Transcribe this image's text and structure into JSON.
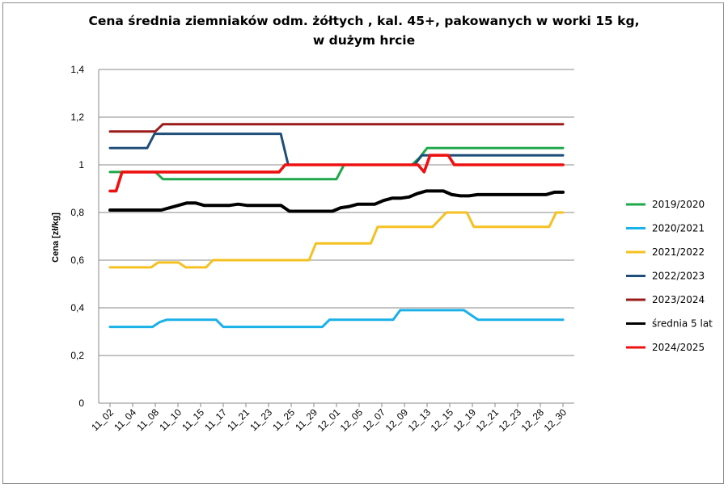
{
  "colors": {
    "2019/2020": "#1fa84a",
    "2020/2021": "#1ab0e8",
    "2021/2022": "#f5c021",
    "2022/2023": "#1e4e79",
    "2023/2024": "#9b1b1b",
    "średnia 5 lat": "#000000",
    "2024/2025": "#ee1111"
  },
  "chart_data": {
    "type": "line",
    "title": "Cena średnia ziemniaków odm. żółtych , kal. 45+, pakowanych w worki 15 kg, w dużym hrcie",
    "title_lines": [
      "Cena średnia ziemniaków odm. żółtych , kal. 45+, pakowanych w worki 15 kg,",
      "w dużym hrcie"
    ],
    "ylabel": "Cena [zł/kg]",
    "xlabel": "",
    "ylim": [
      0,
      1.4
    ],
    "yticks": [
      "0",
      "0,2",
      "0,4",
      "0,6",
      "0,8",
      "1",
      "1,2",
      "1,4"
    ],
    "x_tick_labels": [
      "11_02",
      "11_04",
      "11_08",
      "11_10",
      "11_15",
      "11_17",
      "11_21",
      "11_23",
      "11_25",
      "11_29",
      "12_01",
      "12_05",
      "12_07",
      "12_09",
      "12_13",
      "12_15",
      "12_19",
      "12_21",
      "12_23",
      "12_28",
      "12_30"
    ],
    "grid": true,
    "legend_position": "right",
    "series": [
      {
        "name": "2019/2020",
        "values": [
          0.97,
          0.97,
          0.97,
          0.97,
          0.97,
          0.97,
          0.97,
          0.94,
          0.94,
          0.94,
          0.94,
          0.94,
          0.94,
          0.94,
          0.94,
          0.94,
          0.94,
          0.94,
          0.94,
          0.94,
          0.94,
          0.94,
          0.94,
          0.94,
          0.94,
          0.94,
          0.94,
          0.94,
          0.94,
          0.94,
          0.94,
          1.0,
          1.0,
          1.0,
          1.0,
          1.0,
          1.0,
          1.0,
          1.0,
          1.0,
          1.0,
          1.03,
          1.07,
          1.07,
          1.07,
          1.07,
          1.07,
          1.07,
          1.07,
          1.07,
          1.07,
          1.07,
          1.07,
          1.07,
          1.07,
          1.07,
          1.07,
          1.07,
          1.07,
          1.07,
          1.07
        ]
      },
      {
        "name": "2020/2021",
        "values": [
          0.32,
          0.32,
          0.32,
          0.32,
          0.32,
          0.32,
          0.32,
          0.34,
          0.35,
          0.35,
          0.35,
          0.35,
          0.35,
          0.35,
          0.35,
          0.35,
          0.32,
          0.32,
          0.32,
          0.32,
          0.32,
          0.32,
          0.32,
          0.32,
          0.32,
          0.32,
          0.32,
          0.32,
          0.32,
          0.32,
          0.32,
          0.35,
          0.35,
          0.35,
          0.35,
          0.35,
          0.35,
          0.35,
          0.35,
          0.35,
          0.35,
          0.39,
          0.39,
          0.39,
          0.39,
          0.39,
          0.39,
          0.39,
          0.39,
          0.39,
          0.39,
          0.37,
          0.35,
          0.35,
          0.35,
          0.35,
          0.35,
          0.35,
          0.35,
          0.35,
          0.35,
          0.35,
          0.35,
          0.35,
          0.35
        ]
      },
      {
        "name": "2021/2022",
        "values": [
          0.57,
          0.57,
          0.57,
          0.57,
          0.57,
          0.57,
          0.57,
          0.59,
          0.59,
          0.59,
          0.59,
          0.57,
          0.57,
          0.57,
          0.57,
          0.6,
          0.6,
          0.6,
          0.6,
          0.6,
          0.6,
          0.6,
          0.6,
          0.6,
          0.6,
          0.6,
          0.6,
          0.6,
          0.6,
          0.6,
          0.67,
          0.67,
          0.67,
          0.67,
          0.67,
          0.67,
          0.67,
          0.67,
          0.67,
          0.74,
          0.74,
          0.74,
          0.74,
          0.74,
          0.74,
          0.74,
          0.74,
          0.74,
          0.77,
          0.8,
          0.8,
          0.8,
          0.8,
          0.74,
          0.74,
          0.74,
          0.74,
          0.74,
          0.74,
          0.74,
          0.74,
          0.74,
          0.74,
          0.74,
          0.74,
          0.8,
          0.8
        ]
      },
      {
        "name": "2022/2023",
        "values": [
          1.07,
          1.07,
          1.07,
          1.07,
          1.07,
          1.07,
          1.13,
          1.13,
          1.13,
          1.13,
          1.13,
          1.13,
          1.13,
          1.13,
          1.13,
          1.13,
          1.13,
          1.13,
          1.13,
          1.13,
          1.13,
          1.13,
          1.13,
          1.13,
          1.0,
          1.0,
          1.0,
          1.0,
          1.0,
          1.0,
          1.0,
          1.0,
          1.0,
          1.0,
          1.0,
          1.0,
          1.0,
          1.0,
          1.0,
          1.0,
          1.0,
          1.0,
          1.04,
          1.04,
          1.04,
          1.04,
          1.04,
          1.04,
          1.04,
          1.04,
          1.04,
          1.04,
          1.04,
          1.04,
          1.04,
          1.04,
          1.04,
          1.04,
          1.04,
          1.04,
          1.04,
          1.04
        ]
      },
      {
        "name": "2023/2024",
        "values": [
          1.14,
          1.14,
          1.14,
          1.14,
          1.14,
          1.14,
          1.14,
          1.17,
          1.17,
          1.17,
          1.17,
          1.17,
          1.17,
          1.17,
          1.17,
          1.17,
          1.17,
          1.17,
          1.17,
          1.17,
          1.17,
          1.17,
          1.17,
          1.17,
          1.17,
          1.17,
          1.17,
          1.17,
          1.17,
          1.17,
          1.17,
          1.17,
          1.17,
          1.17,
          1.17,
          1.17,
          1.17,
          1.17,
          1.17,
          1.17,
          1.17,
          1.17,
          1.17,
          1.17,
          1.17,
          1.17,
          1.17,
          1.17,
          1.17,
          1.17,
          1.17,
          1.17,
          1.17,
          1.17,
          1.17,
          1.17,
          1.17,
          1.17,
          1.17,
          1.17,
          1.17
        ]
      },
      {
        "name": "średnia 5 lat",
        "values": [
          0.81,
          0.81,
          0.81,
          0.81,
          0.81,
          0.81,
          0.81,
          0.82,
          0.83,
          0.84,
          0.84,
          0.83,
          0.83,
          0.83,
          0.83,
          0.835,
          0.83,
          0.83,
          0.83,
          0.83,
          0.83,
          0.805,
          0.805,
          0.805,
          0.805,
          0.805,
          0.805,
          0.82,
          0.825,
          0.835,
          0.835,
          0.835,
          0.85,
          0.86,
          0.86,
          0.865,
          0.88,
          0.89,
          0.89,
          0.89,
          0.875,
          0.87,
          0.87,
          0.875,
          0.875,
          0.875,
          0.875,
          0.875,
          0.875,
          0.875,
          0.875,
          0.875,
          0.885,
          0.885
        ]
      },
      {
        "name": "2024/2025",
        "values": [
          0.89,
          0.89,
          0.97,
          0.97,
          0.97,
          0.97,
          0.97,
          0.97,
          0.97,
          0.97,
          0.97,
          0.97,
          0.97,
          0.97,
          0.97,
          0.97,
          0.97,
          0.97,
          0.97,
          0.97,
          0.97,
          0.97,
          0.97,
          0.97,
          0.97,
          0.97,
          0.97,
          0.97,
          0.97,
          1.0,
          1.0,
          1.0,
          1.0,
          1.0,
          1.0,
          1.0,
          1.0,
          1.0,
          1.0,
          1.0,
          1.0,
          1.0,
          1.0,
          1.0,
          1.0,
          1.0,
          1.0,
          1.0,
          1.0,
          1.0,
          1.0,
          1.0,
          0.97,
          1.04,
          1.04,
          1.04,
          1.04,
          1.0,
          1.0,
          1.0,
          1.0,
          1.0,
          1.0,
          1.0,
          1.0,
          1.0,
          1.0,
          1.0,
          1.0,
          1.0,
          1.0,
          1.0,
          1.0,
          1.0,
          1.0,
          1.0
        ]
      }
    ]
  }
}
